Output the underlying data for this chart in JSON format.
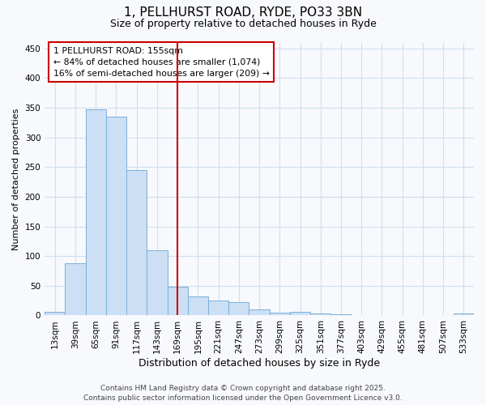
{
  "title_line1": "1, PELLHURST ROAD, RYDE, PO33 3BN",
  "title_line2": "Size of property relative to detached houses in Ryde",
  "xlabel": "Distribution of detached houses by size in Ryde",
  "ylabel": "Number of detached properties",
  "categories": [
    "13sqm",
    "39sqm",
    "65sqm",
    "91sqm",
    "117sqm",
    "143sqm",
    "169sqm",
    "195sqm",
    "221sqm",
    "247sqm",
    "273sqm",
    "299sqm",
    "325sqm",
    "351sqm",
    "377sqm",
    "403sqm",
    "429sqm",
    "455sqm",
    "481sqm",
    "507sqm",
    "533sqm"
  ],
  "values": [
    6,
    88,
    348,
    335,
    245,
    110,
    48,
    32,
    25,
    22,
    10,
    5,
    6,
    4,
    2,
    1,
    0,
    1,
    1,
    1,
    3
  ],
  "bar_color": "#ccdff5",
  "bar_edge_color": "#7ab0d8",
  "vline_x": 6.0,
  "vline_color": "#cc0000",
  "annotation_line1": "1 PELLHURST ROAD: 155sqm",
  "annotation_line2": "← 84% of detached houses are smaller (1,074)",
  "annotation_line3": "16% of semi-detached houses are larger (209) →",
  "annotation_box_color": "#cc0000",
  "ylim": [
    0,
    460
  ],
  "yticks": [
    0,
    50,
    100,
    150,
    200,
    250,
    300,
    350,
    400,
    450
  ],
  "footer_line1": "Contains HM Land Registry data © Crown copyright and database right 2025.",
  "footer_line2": "Contains public sector information licensed under the Open Government Licence v3.0.",
  "bg_color": "#f7f9fc",
  "plot_bg_color": "#f7f9fc",
  "grid_color": "#d0dff0",
  "title1_fontsize": 11,
  "title2_fontsize": 9,
  "xlabel_fontsize": 9,
  "ylabel_fontsize": 8,
  "tick_fontsize": 7.5,
  "footer_fontsize": 6.5
}
